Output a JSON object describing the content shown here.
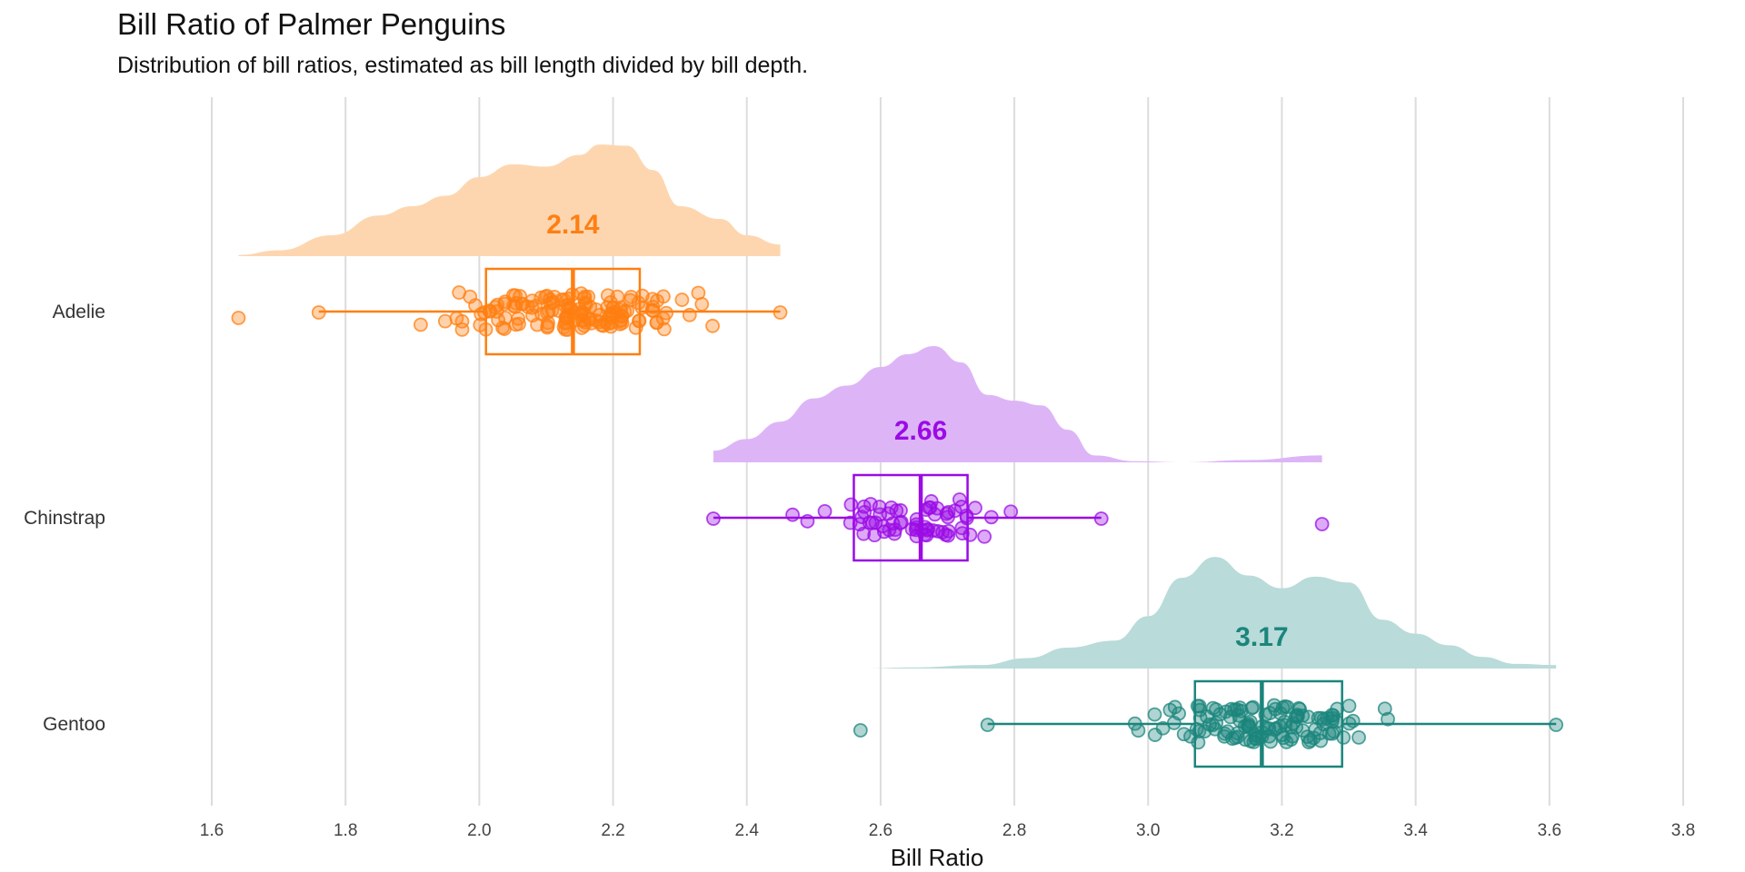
{
  "chart_data": {
    "type": "raincloud",
    "title": "Bill Ratio of Palmer Penguins",
    "subtitle": "Distribution of bill ratios, estimated as bill length divided by bill depth.",
    "xlabel": "Bill Ratio",
    "xlim": [
      1.6,
      3.8
    ],
    "xticks": [
      "1.6",
      "1.8",
      "2.0",
      "2.2",
      "2.4",
      "2.6",
      "2.8",
      "3.0",
      "3.2",
      "3.4",
      "3.6",
      "3.8"
    ],
    "grid": "vertical",
    "series": [
      {
        "name": "Adelie",
        "color": "#ff7f11",
        "fill": "#fdd6b0",
        "min": 1.64,
        "q1": 2.01,
        "median": 2.14,
        "q3": 2.24,
        "whisker_low": 1.76,
        "whisker_high": 2.45,
        "median_label": "2.14",
        "outliers": [
          1.64
        ],
        "density_x": [
          1.64,
          1.7,
          1.78,
          1.85,
          1.9,
          1.95,
          2.0,
          2.05,
          2.1,
          2.15,
          2.18,
          2.22,
          2.26,
          2.3,
          2.36,
          2.4,
          2.45
        ],
        "density_y": [
          0.01,
          0.05,
          0.18,
          0.35,
          0.43,
          0.52,
          0.68,
          0.79,
          0.77,
          0.87,
          0.96,
          0.95,
          0.74,
          0.43,
          0.32,
          0.18,
          0.1
        ]
      },
      {
        "name": "Chinstrap",
        "color": "#9b0be5",
        "fill": "#ddb5f7",
        "min": 2.35,
        "q1": 2.56,
        "median": 2.66,
        "q3": 2.73,
        "whisker_low": 2.35,
        "whisker_high": 2.93,
        "median_label": "2.66",
        "outliers": [
          3.26
        ],
        "density_x": [
          2.35,
          2.4,
          2.45,
          2.5,
          2.55,
          2.6,
          2.64,
          2.68,
          2.72,
          2.76,
          2.8,
          2.84,
          2.88,
          2.92,
          2.98,
          3.05,
          3.15,
          3.26
        ],
        "density_y": [
          0.1,
          0.2,
          0.35,
          0.55,
          0.66,
          0.82,
          0.93,
          1.0,
          0.86,
          0.58,
          0.53,
          0.49,
          0.28,
          0.06,
          0.01,
          0.0,
          0.02,
          0.06
        ]
      },
      {
        "name": "Gentoo",
        "color": "#1b857c",
        "fill": "#b9dbd9",
        "min": 2.57,
        "q1": 3.07,
        "median": 3.17,
        "q3": 3.29,
        "whisker_low": 2.76,
        "whisker_high": 3.61,
        "median_label": "3.17",
        "outliers": [
          2.57
        ],
        "density_x": [
          2.57,
          2.65,
          2.75,
          2.82,
          2.88,
          2.95,
          3.0,
          3.05,
          3.1,
          3.15,
          3.2,
          3.25,
          3.3,
          3.35,
          3.4,
          3.45,
          3.5,
          3.55,
          3.61
        ],
        "density_y": [
          0.0,
          0.01,
          0.03,
          0.09,
          0.18,
          0.24,
          0.45,
          0.78,
          0.96,
          0.8,
          0.69,
          0.79,
          0.74,
          0.42,
          0.3,
          0.2,
          0.1,
          0.04,
          0.03
        ]
      }
    ]
  }
}
